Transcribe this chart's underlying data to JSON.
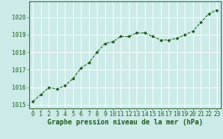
{
  "x": [
    0,
    1,
    2,
    3,
    4,
    5,
    6,
    7,
    8,
    9,
    10,
    11,
    12,
    13,
    14,
    15,
    16,
    17,
    18,
    19,
    20,
    21,
    22,
    23
  ],
  "y": [
    1015.2,
    1015.6,
    1016.0,
    1015.9,
    1016.1,
    1016.5,
    1017.1,
    1017.4,
    1018.0,
    1018.5,
    1018.6,
    1018.9,
    1018.9,
    1019.1,
    1019.1,
    1018.9,
    1018.7,
    1018.7,
    1018.8,
    1019.0,
    1019.2,
    1019.7,
    1020.2,
    1020.4
  ],
  "line_color": "#1a5c1a",
  "marker": "D",
  "marker_size": 2.0,
  "linewidth": 0.8,
  "linestyle": "--",
  "bg_color": "#cceae8",
  "grid_color": "#ffffff",
  "xlabel": "Graphe pression niveau de la mer (hPa)",
  "xlabel_color": "#1a5c1a",
  "xlabel_fontsize": 7,
  "tick_label_color": "#1a5c1a",
  "tick_label_fontsize": 6.0,
  "ylim": [
    1014.8,
    1020.9
  ],
  "yticks": [
    1015,
    1016,
    1017,
    1018,
    1019,
    1020
  ],
  "xlim": [
    -0.5,
    23.5
  ],
  "xticks": [
    0,
    1,
    2,
    3,
    4,
    5,
    6,
    7,
    8,
    9,
    10,
    11,
    12,
    13,
    14,
    15,
    16,
    17,
    18,
    19,
    20,
    21,
    22,
    23
  ],
  "spine_color": "#336633"
}
